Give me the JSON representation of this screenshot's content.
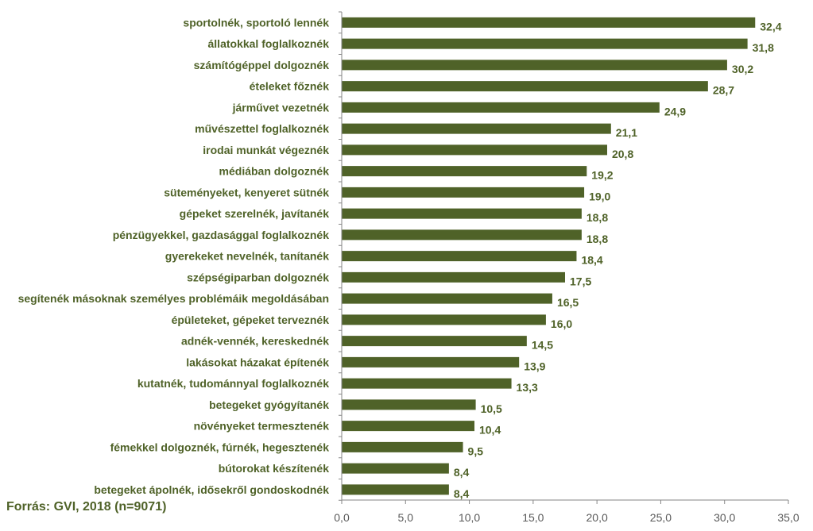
{
  "source_note": "Forrás: GVI, 2018 (n=9071)",
  "colors": {
    "bar": "#4f6228",
    "label": "#4f6228",
    "axis": "#868686",
    "tick_text": "#595959",
    "source_text": "#4f6228"
  },
  "chart_data": {
    "type": "bar",
    "orientation": "horizontal",
    "categories": [
      "sportolnék, sportoló lennék",
      "állatokkal foglalkoznék",
      "számítógéppel dolgoznék",
      "ételeket főznék",
      "járművet vezetnék",
      "művészettel foglalkoznék",
      "irodai munkát végeznék",
      "médiában dolgoznék",
      "süteményeket, kenyeret sütnék",
      "gépeket szerelnék, javítanék",
      "pénzügyekkel, gazdasággal foglalkoznék",
      "gyerekeket nevelnék, tanítanék",
      "szépségiparban dolgoznék",
      "segítenék másoknak személyes problémáik megoldásában",
      "épületeket, gépeket terveznék",
      "adnék-vennék, kereskednék",
      "lakásokat házakat építenék",
      "kutatnék, tudománnyal foglalkoznék",
      "betegeket gyógyítanék",
      "növényeket termesztenék",
      "fémekkel dolgoznék, fúrnék, hegesztenék",
      "bútorokat készítenék",
      "betegeket ápolnék, idősekről gondoskodnék"
    ],
    "values": [
      32.4,
      31.8,
      30.2,
      28.7,
      24.9,
      21.1,
      20.8,
      19.2,
      19.0,
      18.8,
      18.8,
      18.4,
      17.5,
      16.5,
      16.0,
      14.5,
      13.9,
      13.3,
      10.5,
      10.4,
      9.5,
      8.4,
      8.4
    ],
    "value_labels": [
      "32,4",
      "31,8",
      "30,2",
      "28,7",
      "24,9",
      "21,1",
      "20,8",
      "19,2",
      "19,0",
      "18,8",
      "18,8",
      "18,4",
      "17,5",
      "16,5",
      "16,0",
      "14,5",
      "13,9",
      "13,3",
      "10,5",
      "10,4",
      "9,5",
      "8,4",
      "8,4"
    ],
    "xlim": [
      0,
      35
    ],
    "xticks": [
      0,
      5,
      10,
      15,
      20,
      25,
      30,
      35
    ],
    "xtick_labels": [
      "0,0",
      "5,0",
      "10,0",
      "15,0",
      "20,0",
      "25,0",
      "30,0",
      "35,0"
    ],
    "grid": false,
    "legend": "none"
  }
}
